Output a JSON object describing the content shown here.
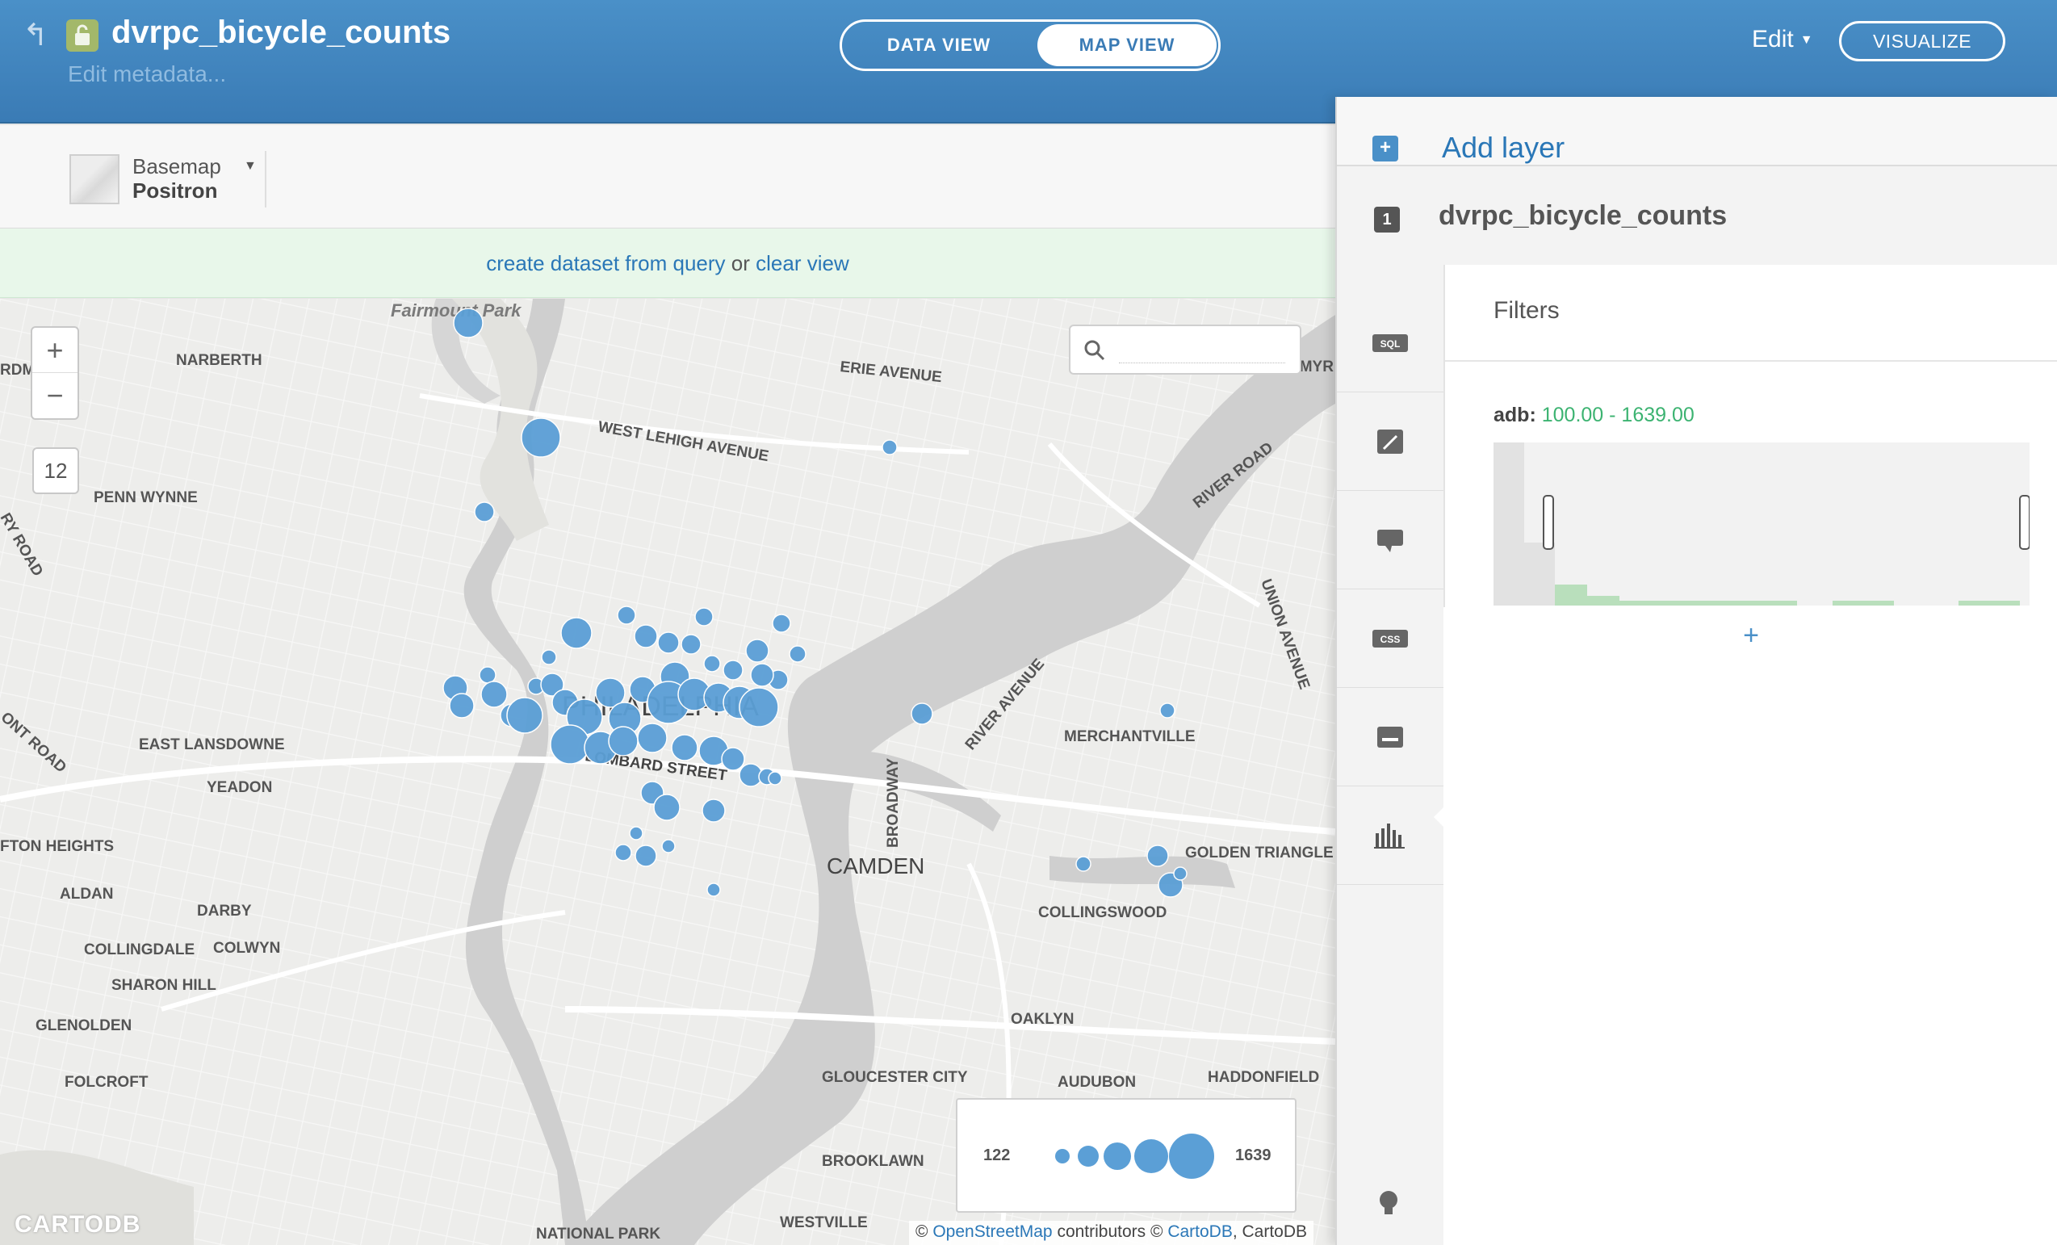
{
  "header": {
    "back_icon": "back-arrow-icon",
    "lock_icon": "lock-icon",
    "title": "dvrpc_bicycle_counts",
    "subtitle": "Edit metadata...",
    "tabs": {
      "data_view": "DATA VIEW",
      "map_view": "MAP VIEW",
      "active": "MAP VIEW"
    },
    "edit_menu": "Edit",
    "visualize_label": "VISUALIZE"
  },
  "toolbar": {
    "basemap_label": "Basemap",
    "basemap_value": "Positron"
  },
  "query_bar": {
    "create_link": "create dataset from query",
    "or_text": "or",
    "clear_link": "clear view"
  },
  "map": {
    "zoom_in": "+",
    "zoom_out": "−",
    "zoom_level": "12",
    "search_placeholder": "",
    "places": [
      "Fairmount Park",
      "NARBERTH",
      "RDMORE",
      "ERIE AVENUE",
      "WEST LEHIGH AVENUE",
      "PENN WYNNE",
      "RIVER ROAD",
      "PHILADELPHIA",
      "LOMBARD STREET",
      "EAST LANSDOWNE",
      "YEADON",
      "FTON HEIGHTS",
      "ALDAN",
      "DARBY",
      "COLLINGDALE",
      "COLWYN",
      "SHARON HILL",
      "GLENOLDEN",
      "FOLCROFT",
      "CAMDEN",
      "BROADWAY",
      "RIVER AVENUE",
      "MERCHANTVILLE",
      "UNION AVENUE",
      "GOLDEN TRIANGLE",
      "COLLINGSWOOD",
      "OAKLYN",
      "GLOUCESTER CITY",
      "AUDUBON",
      "HADDONFIELD",
      "BROOKLAWN",
      "NATIONAL PARK",
      "WESTVILLE",
      "RY ROAD",
      "ONT ROAD",
      "AMYR"
    ],
    "legend": {
      "min": "122",
      "max": "1639"
    },
    "logo": "CARTODB",
    "attribution": {
      "prefix": "©",
      "osm": "OpenStreetMap",
      "contributors": "contributors ©",
      "cartodb_link": "CartoDB",
      "suffix": ", CartoDB"
    },
    "point_color": "#5b9fd6"
  },
  "panel": {
    "add_layer": "Add layer",
    "layer_number": "1",
    "layer_name": "dvrpc_bicycle_counts",
    "tools": [
      "sql-icon",
      "wizard-brush-icon",
      "infowindow-icon",
      "css-icon",
      "legend-icon",
      "filters-histogram-icon"
    ],
    "filters": {
      "title": "Filters",
      "column": "adb:",
      "range": "100.00 - 1639.00",
      "add_symbol": "+"
    },
    "bottom_icon": "lightbulb-icon"
  }
}
